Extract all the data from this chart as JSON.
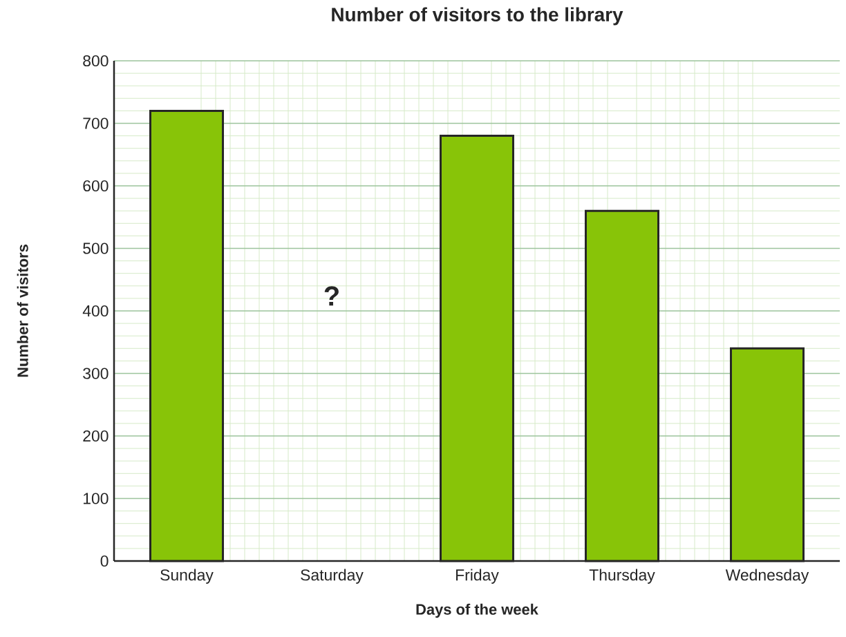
{
  "chart_data": {
    "type": "bar",
    "title": "Number of visitors to the library",
    "xlabel": "Days of the week",
    "ylabel": "Number of visitors",
    "categories": [
      "Sunday",
      "Saturday",
      "Friday",
      "Thursday",
      "Wednesday"
    ],
    "values": [
      720,
      null,
      680,
      560,
      340
    ],
    "color": "#88c408",
    "ylim": [
      0,
      800
    ],
    "yticks": [
      0,
      100,
      200,
      300,
      400,
      500,
      600,
      700,
      800
    ],
    "grid": true,
    "annotations": [
      "?"
    ]
  }
}
